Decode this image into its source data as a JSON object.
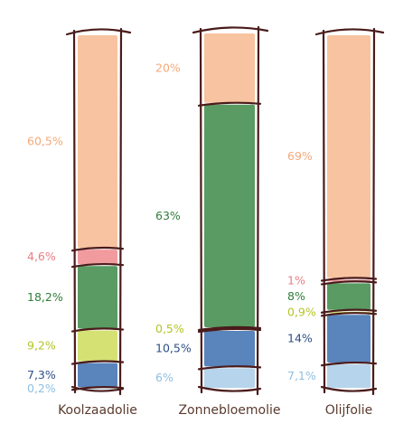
{
  "chart_data": {
    "type": "bar",
    "stacked": true,
    "orientation": "vertical",
    "categories": [
      "Koolzaadolie",
      "Zonnebloemolie",
      "Olijfolie"
    ],
    "series": [
      {
        "values": [
          60.5,
          20,
          69
        ],
        "labels": [
          "60,5%",
          "20%",
          "69%"
        ],
        "color": "#f7b98f"
      },
      {
        "values": [
          4.6,
          0,
          1
        ],
        "labels": [
          "4,6%",
          "",
          "1%"
        ],
        "color": "#ef8a8e"
      },
      {
        "values": [
          18.2,
          63,
          8
        ],
        "labels": [
          "18,2%",
          "63%",
          "8%"
        ],
        "color": "#3c8a46"
      },
      {
        "values": [
          9.2,
          0.5,
          0.9
        ],
        "labels": [
          "9,2%",
          "0,5%",
          "0,9%"
        ],
        "color": "#cfdc5a"
      },
      {
        "values": [
          7.3,
          10.5,
          14
        ],
        "labels": [
          "7,3%",
          "10,5%",
          "14%"
        ],
        "color": "#3c6fb0"
      },
      {
        "values": [
          0.2,
          6,
          7.1
        ],
        "labels": [
          "0,2%",
          "6%",
          "7,1%"
        ],
        "color": "#a9cde8"
      }
    ],
    "label_colors": [
      "#f4a97a",
      "#e87e84",
      "#2f7d3a",
      "#b5c42a",
      "#2d4f86",
      "#8fbfe0"
    ],
    "legend": "none",
    "grid": false
  }
}
